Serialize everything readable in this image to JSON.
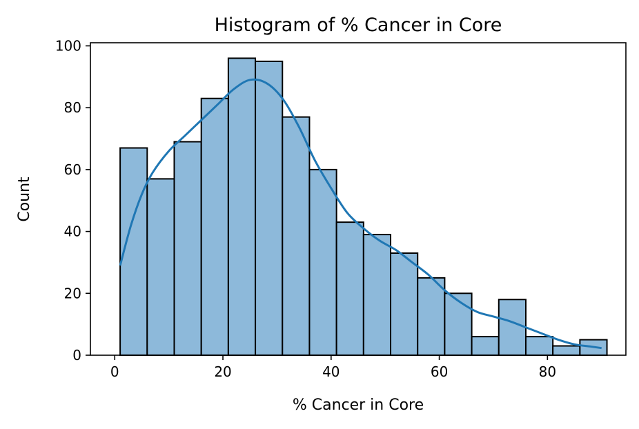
{
  "chart_data": {
    "type": "bar",
    "title": "Histogram of % Cancer in Core",
    "xlabel": "% Cancer in Core",
    "ylabel": "Count",
    "xlim": [
      -4.5,
      94.5
    ],
    "ylim": [
      0,
      101
    ],
    "xticks": [
      0,
      20,
      40,
      60,
      80
    ],
    "yticks": [
      0,
      20,
      40,
      60,
      80,
      100
    ],
    "grid": false,
    "bins": [
      {
        "x0": 1,
        "x1": 6,
        "count": 67
      },
      {
        "x0": 6,
        "x1": 11,
        "count": 57
      },
      {
        "x0": 11,
        "x1": 16,
        "count": 69
      },
      {
        "x0": 16,
        "x1": 21,
        "count": 83
      },
      {
        "x0": 21,
        "x1": 26,
        "count": 96
      },
      {
        "x0": 26,
        "x1": 31,
        "count": 95
      },
      {
        "x0": 31,
        "x1": 36,
        "count": 77
      },
      {
        "x0": 36,
        "x1": 41,
        "count": 60
      },
      {
        "x0": 41,
        "x1": 46,
        "count": 43
      },
      {
        "x0": 46,
        "x1": 51,
        "count": 39
      },
      {
        "x0": 51,
        "x1": 56,
        "count": 33
      },
      {
        "x0": 56,
        "x1": 61,
        "count": 25
      },
      {
        "x0": 61,
        "x1": 66,
        "count": 20
      },
      {
        "x0": 66,
        "x1": 71,
        "count": 6
      },
      {
        "x0": 71,
        "x1": 76,
        "count": 18
      },
      {
        "x0": 76,
        "x1": 81,
        "count": 6
      },
      {
        "x0": 81,
        "x1": 86,
        "count": 3
      },
      {
        "x0": 86,
        "x1": 91,
        "count": 5
      }
    ],
    "kde": {
      "x": [
        1,
        3,
        5,
        7,
        10,
        13,
        16,
        19,
        22,
        25,
        28,
        31,
        34,
        37,
        40,
        43,
        46,
        49,
        52,
        55,
        58,
        61,
        64,
        67,
        70,
        73,
        76,
        79,
        82,
        85,
        88,
        90
      ],
      "y": [
        29,
        42,
        52,
        59,
        66,
        71,
        76,
        81,
        86,
        89,
        88,
        83,
        74,
        63,
        54,
        46,
        41,
        37,
        34,
        30,
        26,
        21,
        17,
        14,
        12.5,
        11,
        9,
        7,
        5,
        3.5,
        2.8,
        2.3
      ]
    },
    "colors": {
      "bar_fill": "#8db9da",
      "bar_edge": "#000000",
      "kde_line": "#1f77b4"
    }
  }
}
